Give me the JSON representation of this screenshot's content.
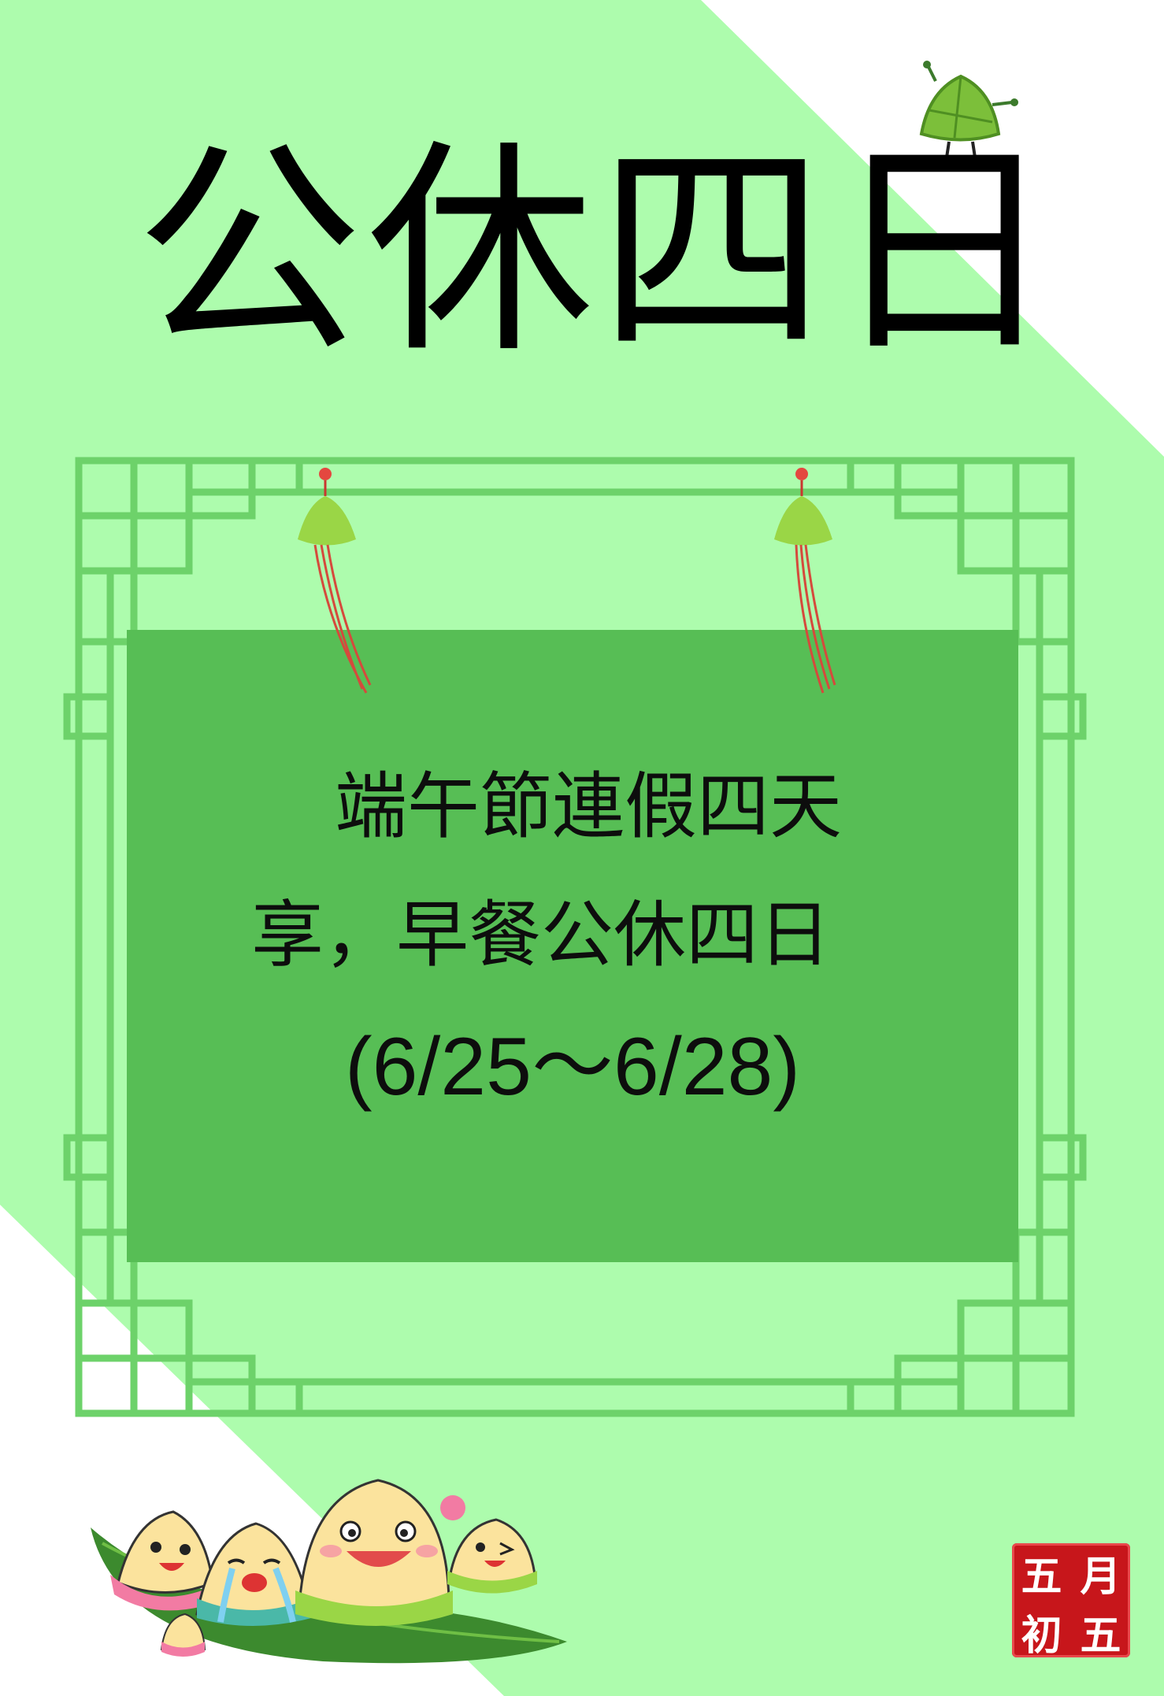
{
  "poster": {
    "title": "公休四日",
    "notice_line1": "端午節連假四天",
    "notice_line2": "享，早餐公休四日",
    "notice_line3": "(6/25～6/28)"
  },
  "seal": {
    "chars": [
      "五",
      "月",
      "初",
      "五"
    ]
  },
  "colors": {
    "band_green": "#adfcad",
    "panel_green": "#57be55",
    "frame_green": "#6dd26a",
    "background": "#ffffff"
  },
  "icons": {
    "zongzi_top": "zongzi-character-icon",
    "hanging_ornaments": "zongzi-tassel-icon",
    "mascot_group": "zongzi-mascots-on-leaf-icon",
    "seal": "red-seal-stamp-icon"
  }
}
